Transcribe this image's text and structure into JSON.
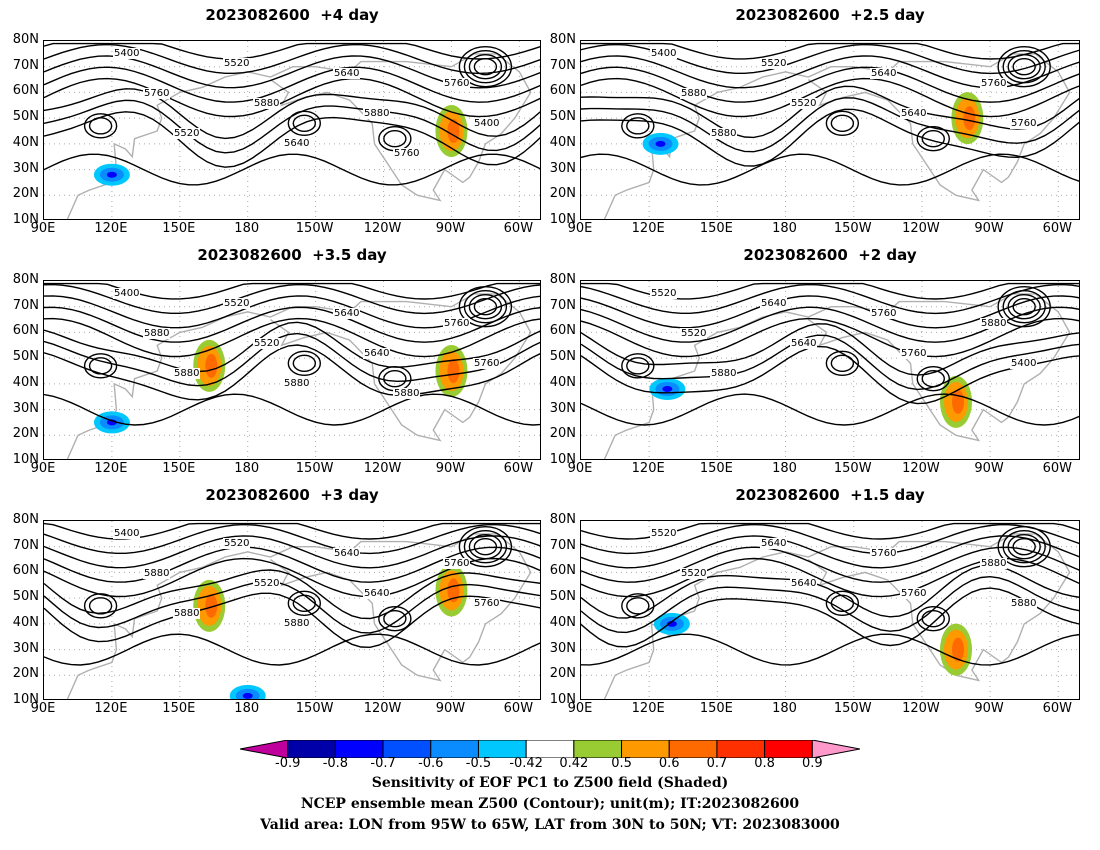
{
  "panels": [
    {
      "title": "2023082600  +4 day",
      "id": "p4"
    },
    {
      "title": "2023082600  +2.5 day",
      "id": "p25"
    },
    {
      "title": "2023082600  +3.5 day",
      "id": "p35"
    },
    {
      "title": "2023082600  +2 day",
      "id": "p2"
    },
    {
      "title": "2023082600  +3 day",
      "id": "p3"
    },
    {
      "title": "2023082600  +1.5 day",
      "id": "p15"
    }
  ],
  "y_ticks": [
    "80N",
    "70N",
    "60N",
    "50N",
    "40N",
    "30N",
    "20N",
    "10N"
  ],
  "x_ticks": [
    "90E",
    "120E",
    "150E",
    "180",
    "150W",
    "120W",
    "90W",
    "60W"
  ],
  "contour_labels": {
    "p4": [
      "5400",
      "5520",
      "5640",
      "5760",
      "5760",
      "5880",
      "5880",
      "5400",
      "5520",
      "5640",
      "5760"
    ],
    "p25": [
      "5400",
      "5520",
      "5640",
      "5760",
      "5880",
      "5520",
      "5640",
      "5760",
      "5880"
    ],
    "p35": [
      "5400",
      "5520",
      "5640",
      "5760",
      "5880",
      "5520",
      "5640",
      "5760",
      "5880",
      "5880",
      "5880"
    ],
    "p2": [
      "5520",
      "5640",
      "5760",
      "5880",
      "5520",
      "5640",
      "5760",
      "5400",
      "5880"
    ],
    "p3": [
      "5400",
      "5520",
      "5640",
      "5760",
      "5880",
      "5520",
      "5640",
      "5760",
      "5880",
      "5880"
    ],
    "p15": [
      "5520",
      "5640",
      "5760",
      "5880",
      "5520",
      "5640",
      "5760",
      "5880"
    ]
  },
  "colorbar": {
    "labels": [
      "-0.9",
      "-0.8",
      "-0.7",
      "-0.6",
      "-0.5",
      "-0.42",
      "0.42",
      "0.5",
      "0.6",
      "0.7",
      "0.8",
      "0.9"
    ],
    "colors": [
      "#c0009c",
      "#0000a8",
      "#0000ff",
      "#0050ff",
      "#0a8cff",
      "#00c8ff",
      "#ffffff",
      "#98cc32",
      "#ff9900",
      "#ff6a00",
      "#ff3000",
      "#ff0000",
      "#ff99cc"
    ]
  },
  "caption": {
    "line1": "Sensitivity of EOF PC1 to Z500 field (Shaded)",
    "line2": "NCEP ensemble mean Z500 (Contour); unit(m); IT:2023082600",
    "line3": "Valid area: LON from 95W to 65W, LAT from 30N to 50N; VT: 2023083000"
  },
  "chart_data": {
    "type": "heatmap",
    "field": "Sensitivity of EOF PC1 to Z500 field (Shaded)",
    "contour_field": "NCEP ensemble mean Z500 (Contour); unit(m)",
    "contour_levels": [
      5400,
      5520,
      5640,
      5760,
      5880
    ],
    "shading_levels": [
      -0.9,
      -0.8,
      -0.7,
      -0.6,
      -0.5,
      -0.42,
      0.42,
      0.5,
      0.6,
      0.7,
      0.8,
      0.9
    ],
    "lon_range": [
      "90E",
      "50W"
    ],
    "lat_range": [
      "10N",
      "80N"
    ],
    "panels": [
      {
        "lead": "+4 day",
        "positive_maxima": [
          {
            "lon": "90W",
            "lat": "45N"
          }
        ],
        "negative_maxima": [
          {
            "lon": "120E",
            "lat": "28N"
          }
        ]
      },
      {
        "lead": "+2.5 day",
        "positive_maxima": [
          {
            "lon": "100W",
            "lat": "50N"
          }
        ],
        "negative_maxima": [
          {
            "lon": "125E",
            "lat": "40N"
          }
        ]
      },
      {
        "lead": "+3.5 day",
        "positive_maxima": [
          {
            "lon": "163E",
            "lat": "47N"
          },
          {
            "lon": "90W",
            "lat": "45N"
          }
        ],
        "negative_maxima": [
          {
            "lon": "120E",
            "lat": "25N"
          }
        ]
      },
      {
        "lead": "+2 day",
        "positive_maxima": [
          {
            "lon": "105W",
            "lat": "33N"
          }
        ],
        "negative_maxima": [
          {
            "lon": "128E",
            "lat": "38N"
          }
        ]
      },
      {
        "lead": "+3 day",
        "positive_maxima": [
          {
            "lon": "163E",
            "lat": "47N"
          },
          {
            "lon": "90W",
            "lat": "53N"
          }
        ],
        "negative_maxima": [
          {
            "lon": "180",
            "lat": "12N"
          }
        ]
      },
      {
        "lead": "+1.5 day",
        "positive_maxima": [
          {
            "lon": "105W",
            "lat": "30N"
          }
        ],
        "negative_maxima": [
          {
            "lon": "130E",
            "lat": "40N"
          }
        ]
      }
    ]
  }
}
